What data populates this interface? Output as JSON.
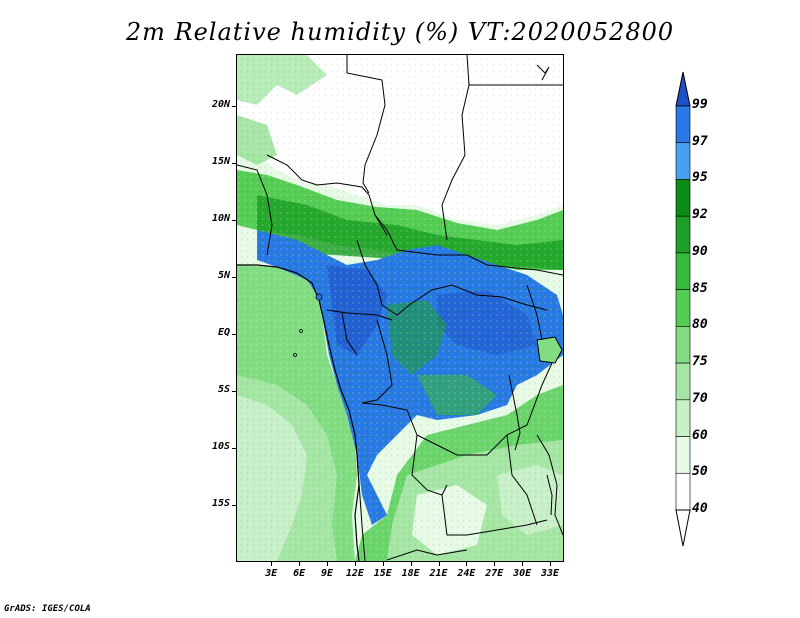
{
  "title": "2m Relative humidity (%) VT:2020052800",
  "footer": "GrADS: IGES/COLA",
  "map": {
    "lat_ticks": [
      {
        "label": "20N",
        "lat": 20
      },
      {
        "label": "15N",
        "lat": 15
      },
      {
        "label": "10N",
        "lat": 10
      },
      {
        "label": "5N",
        "lat": 5
      },
      {
        "label": "EQ",
        "lat": 0
      },
      {
        "label": "5S",
        "lat": -5
      },
      {
        "label": "10S",
        "lat": -10
      },
      {
        "label": "15S",
        "lat": -15
      }
    ],
    "lon_ticks": [
      {
        "label": "3E",
        "lon": 3
      },
      {
        "label": "6E",
        "lon": 6
      },
      {
        "label": "9E",
        "lon": 9
      },
      {
        "label": "12E",
        "lon": 12
      },
      {
        "label": "15E",
        "lon": 15
      },
      {
        "label": "18E",
        "lon": 18
      },
      {
        "label": "21E",
        "lon": 21
      },
      {
        "label": "24E",
        "lon": 24
      },
      {
        "label": "27E",
        "lon": 27
      },
      {
        "label": "30E",
        "lon": 30
      },
      {
        "label": "33E",
        "lon": 33
      }
    ]
  },
  "colorbar": {
    "levels": [
      "99",
      "97",
      "95",
      "92",
      "90",
      "85",
      "80",
      "75",
      "70",
      "60",
      "50",
      "40"
    ],
    "colors": [
      "#1e50c8",
      "#2878e6",
      "#4aa0f0",
      "#0a8c16",
      "#1ea028",
      "#37b93c",
      "#55cd55",
      "#82dc82",
      "#a5e6a5",
      "#c8f0c8",
      "#e6fae6",
      "#ffffff"
    ],
    "top_color": "#1e50c8",
    "bottom_color": "#ffffff"
  }
}
